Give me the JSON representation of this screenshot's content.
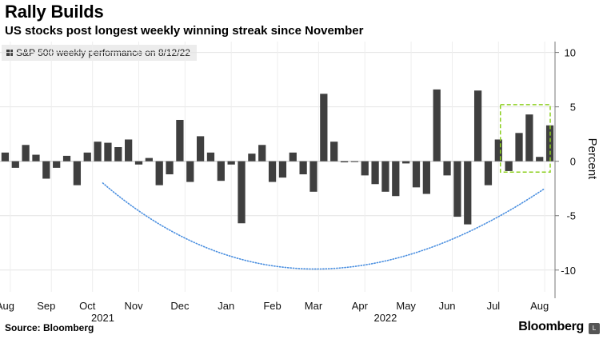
{
  "title": "Rally Builds",
  "subtitle": "US stocks post longest weekly winning streak since November",
  "legend_label": "S&P 500 weekly performance on 8/12/22",
  "source": "Source: Bloomberg",
  "brand": "Bloomberg",
  "brand_badge": "L",
  "colors": {
    "bar": "#3f3f3f",
    "curve": "#4a8fe0",
    "highlight": "#8ccf1e",
    "grid": "#e4e4e4"
  },
  "chart_data": {
    "type": "bar",
    "title": "Rally Builds",
    "subtitle": "US stocks post longest weekly winning streak since November",
    "series": [
      {
        "name": "S&P 500 weekly performance on 8/12/22"
      }
    ],
    "values": [
      0.8,
      -0.6,
      1.5,
      0.6,
      -1.6,
      -0.6,
      0.5,
      -2.2,
      0.8,
      1.8,
      1.7,
      1.3,
      2.0,
      -0.3,
      0.3,
      -2.2,
      -1.2,
      3.8,
      -1.9,
      2.3,
      0.8,
      -1.8,
      -0.3,
      -5.7,
      0.7,
      1.5,
      -1.9,
      -1.5,
      0.8,
      -1.2,
      -2.8,
      6.2,
      1.8,
      -0.1,
      0.0,
      -1.3,
      -2.1,
      -2.8,
      -3.2,
      -0.2,
      -2.4,
      -3.0,
      6.6,
      -1.3,
      -5.1,
      -5.8,
      6.5,
      -2.2,
      2.0,
      -0.9,
      2.6,
      4.3,
      0.4,
      3.3
    ],
    "ylim": [
      -12,
      11
    ],
    "yticks": [
      -10,
      -5,
      0,
      5,
      10
    ],
    "ytick_labels": [
      "-10",
      "-5",
      "0",
      "5",
      "10"
    ],
    "ylabel": "Percent",
    "x_month_labels": [
      "Aug",
      "Sep",
      "Oct",
      "Nov",
      "Dec",
      "Jan",
      "Feb",
      "Mar",
      "Apr",
      "May",
      "Jun",
      "Jul",
      "Aug"
    ],
    "x_month_bar_index": [
      0.5,
      4.5,
      8.5,
      13,
      17.5,
      22,
      26.5,
      30.5,
      35,
      39.5,
      43.5,
      48,
      52.5
    ],
    "x_year_labels": [
      "2021",
      "2022"
    ],
    "x_year_bar_index": [
      9.5,
      37
    ],
    "annotations": [
      {
        "type": "dotted-curve",
        "description": "U-shaped trend",
        "start_bar": 10,
        "end_bar": 52,
        "start_value": -2.0,
        "bottom_value": -9.9,
        "end_value": -2.5
      },
      {
        "type": "dashed-box",
        "description": "winning streak highlight",
        "first_bar": 49,
        "last_bar": 54,
        "ymin": -1.0,
        "ymax": 5.2
      }
    ]
  }
}
